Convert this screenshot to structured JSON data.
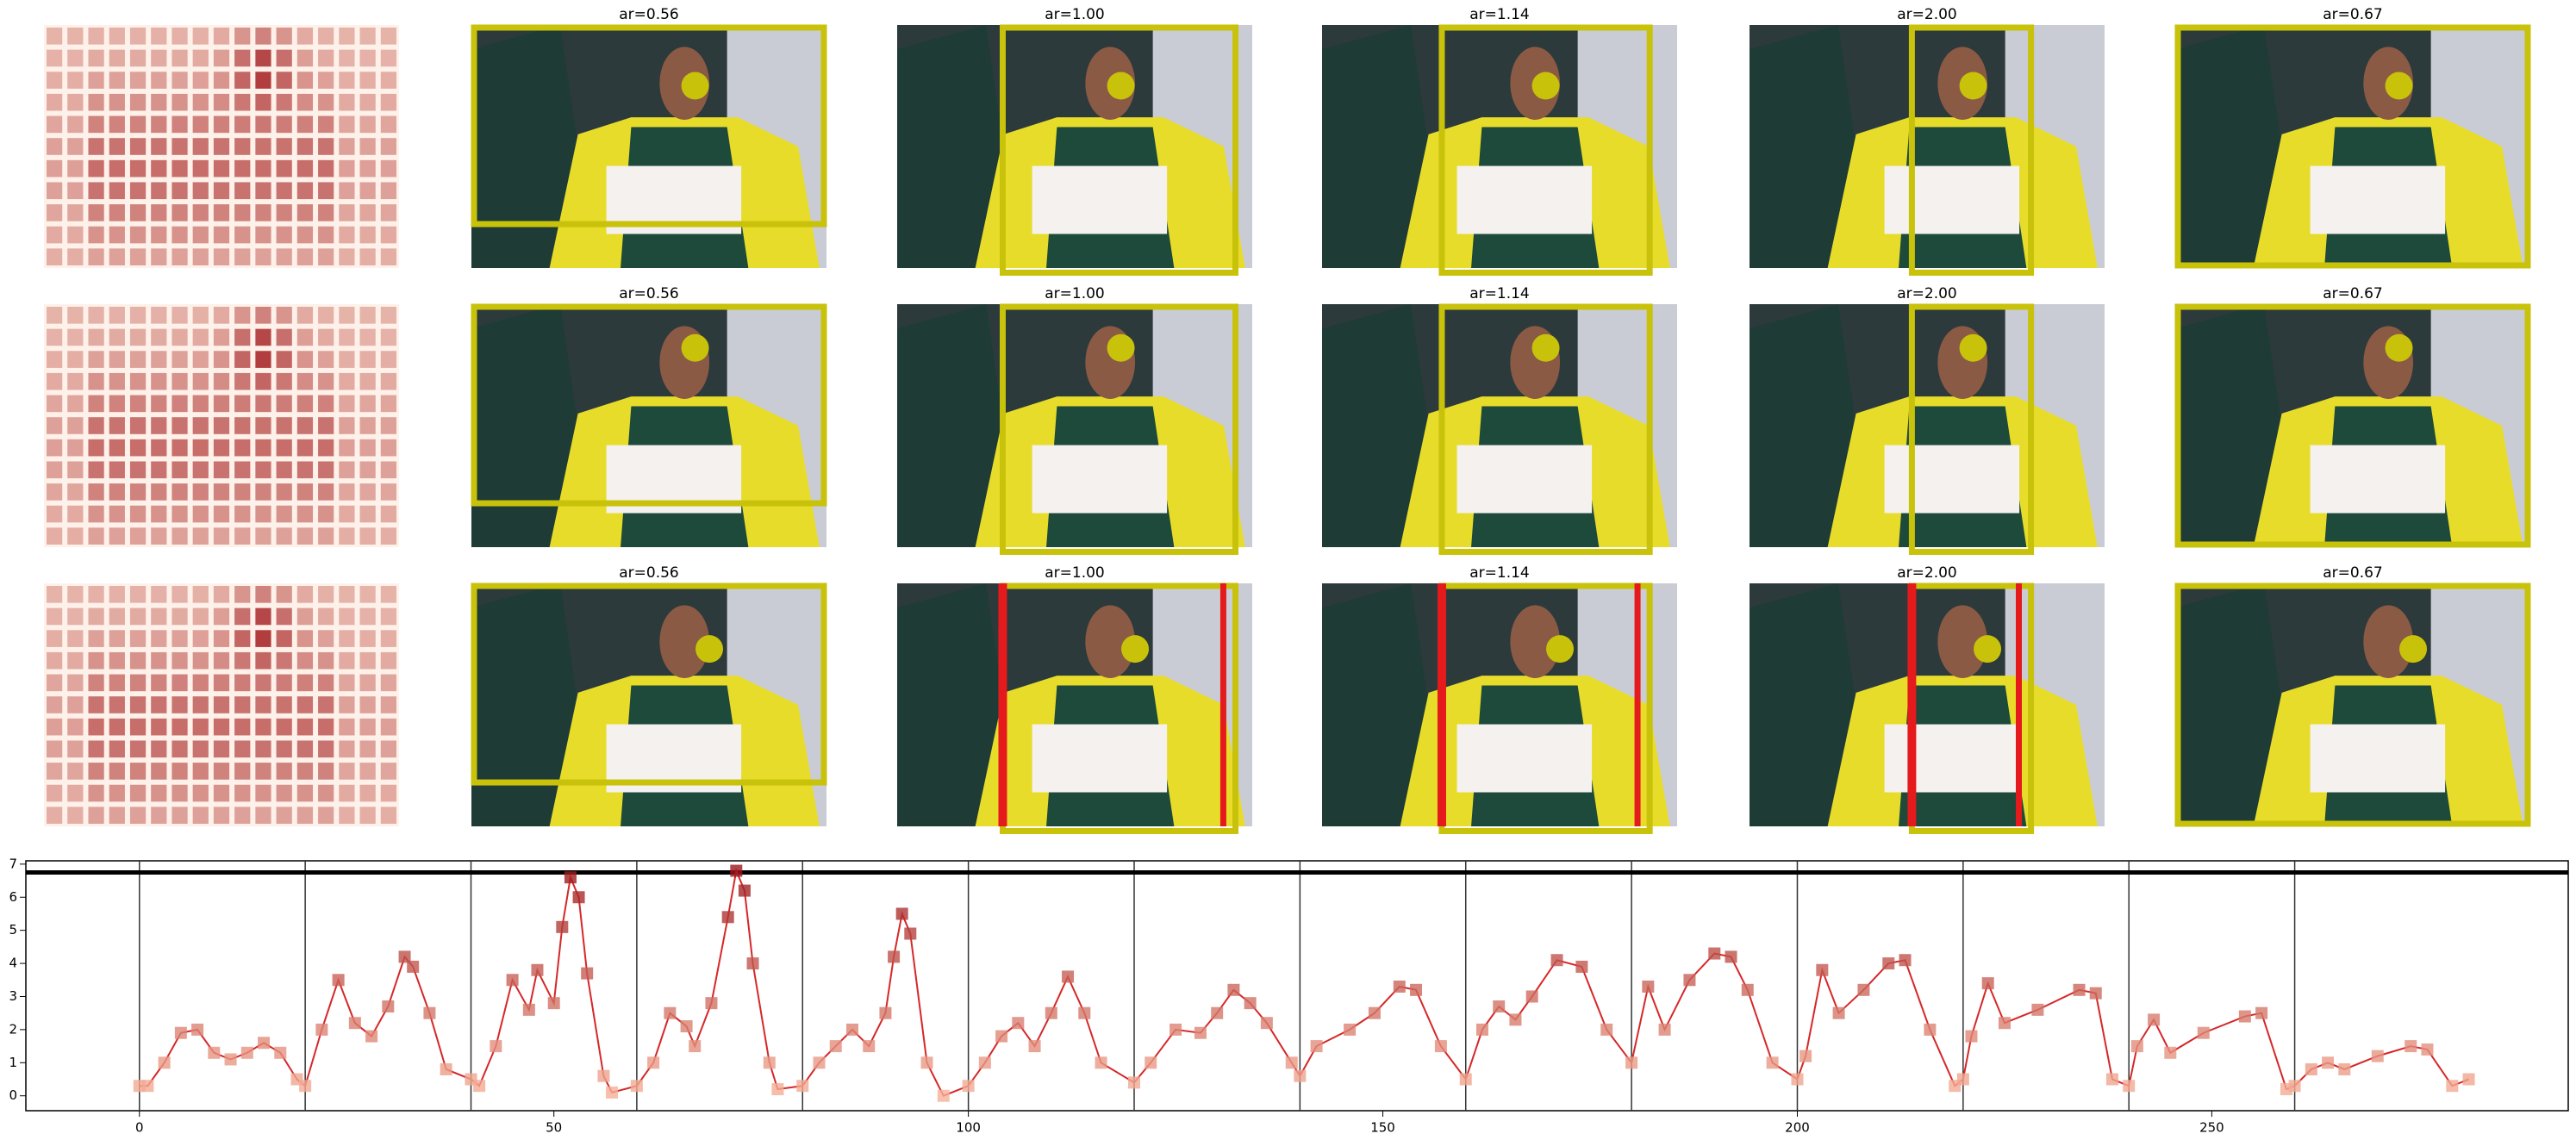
{
  "panels": {
    "titles": [
      [
        "ar=0.56",
        "ar=1.00",
        "ar=1.14",
        "ar=2.00",
        "ar=0.67"
      ],
      [
        "ar=0.56",
        "ar=1.00",
        "ar=1.14",
        "ar=2.00",
        "ar=0.67"
      ],
      [
        "ar=0.56",
        "ar=1.00",
        "ar=1.14",
        "ar=2.00",
        "ar=0.67"
      ]
    ]
  },
  "chart_data": {
    "type": "line",
    "x": [
      0,
      1,
      3,
      5,
      7,
      9,
      11,
      13,
      15,
      17,
      19,
      20,
      22,
      24,
      26,
      28,
      30,
      32,
      33,
      35,
      37,
      40,
      41,
      43,
      45,
      47,
      48,
      50,
      51,
      52,
      53,
      54,
      56,
      57,
      60,
      62,
      64,
      66,
      67,
      69,
      71,
      72,
      73,
      74,
      76,
      77,
      80,
      82,
      84,
      86,
      88,
      90,
      91,
      92,
      93,
      95,
      97,
      100,
      102,
      104,
      106,
      108,
      110,
      112,
      114,
      116,
      120,
      122,
      125,
      128,
      130,
      132,
      134,
      136,
      139,
      140,
      142,
      146,
      149,
      152,
      154,
      157,
      160,
      162,
      164,
      166,
      168,
      171,
      174,
      177,
      180,
      182,
      184,
      187,
      190,
      192,
      194,
      197,
      200,
      201,
      203,
      205,
      208,
      211,
      213,
      216,
      219,
      220,
      221,
      223,
      225,
      229,
      234,
      236,
      238,
      240,
      241,
      243,
      245,
      249,
      254,
      256,
      259,
      260,
      262,
      264,
      266,
      270,
      274,
      276,
      279,
      281
    ],
    "values": [
      0.3,
      0.3,
      1.0,
      1.9,
      2.0,
      1.3,
      1.1,
      1.3,
      1.6,
      1.3,
      0.5,
      0.3,
      2.0,
      3.5,
      2.2,
      1.8,
      2.7,
      4.2,
      3.9,
      2.5,
      0.8,
      0.5,
      0.3,
      1.5,
      3.5,
      2.6,
      3.8,
      2.8,
      5.1,
      6.6,
      6.0,
      3.7,
      0.6,
      0.1,
      0.3,
      1.0,
      2.5,
      2.1,
      1.5,
      2.8,
      5.4,
      6.8,
      6.2,
      4.0,
      1.0,
      0.2,
      0.3,
      1.0,
      1.5,
      2.0,
      1.5,
      2.5,
      4.2,
      5.5,
      4.9,
      1.0,
      0.0,
      0.3,
      1.0,
      1.8,
      2.2,
      1.5,
      2.5,
      3.6,
      2.5,
      1.0,
      0.4,
      1.0,
      2.0,
      1.9,
      2.5,
      3.2,
      2.8,
      2.2,
      1.0,
      0.6,
      1.5,
      2.0,
      2.5,
      3.3,
      3.2,
      1.5,
      0.5,
      2.0,
      2.7,
      2.3,
      3.0,
      4.1,
      3.9,
      2.0,
      1.0,
      3.3,
      2.0,
      3.5,
      4.3,
      4.2,
      3.2,
      1.0,
      0.5,
      1.2,
      3.8,
      2.5,
      3.2,
      4.0,
      4.1,
      2.0,
      0.3,
      0.5,
      1.8,
      3.4,
      2.2,
      2.6,
      3.2,
      3.1,
      0.5,
      0.3,
      1.5,
      2.3,
      1.3,
      1.9,
      2.4,
      2.5,
      0.2,
      0.3,
      0.8,
      1.0,
      0.8,
      1.2,
      1.5,
      1.4,
      0.3,
      0.5
    ],
    "color": "#d62728",
    "xlim": [
      -13.7,
      293
    ],
    "ylim": [
      -0.45,
      7.1
    ],
    "xticks": [
      0,
      50,
      100,
      150,
      200,
      250
    ],
    "yticks": [
      0,
      1,
      2,
      3,
      4,
      5,
      6,
      7
    ],
    "vlines": [
      0,
      20,
      40,
      60,
      80,
      100,
      120,
      140,
      160,
      180,
      200,
      220,
      240,
      260
    ],
    "hline": 6.75
  }
}
